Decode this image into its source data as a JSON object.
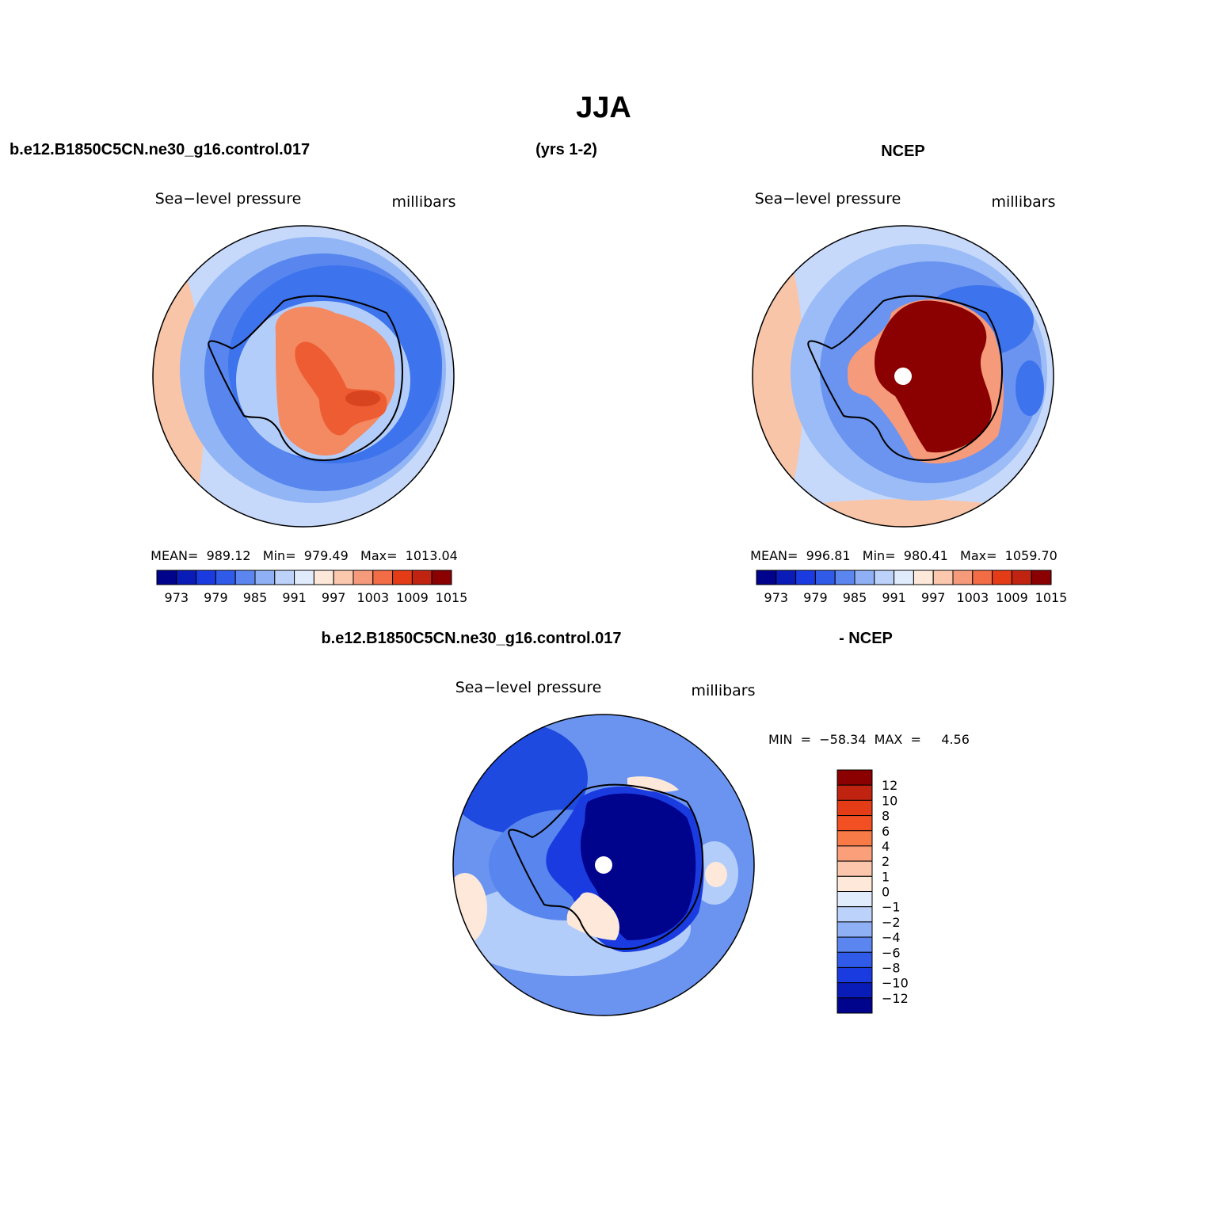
{
  "figure": {
    "season": "JJA",
    "case_name": "b.e12.B1850C5CN.ne30_g16.control.017",
    "years": "(yrs 1-2)",
    "obs_name": "NCEP",
    "diff_case_name": "b.e12.B1850C5CN.ne30_g16.control.017",
    "diff_suffix": "- NCEP"
  },
  "chart_data": [
    {
      "type": "heatmap",
      "projection": "south-polar-stereographic",
      "title_left": "Sea−level pressure",
      "title_right": "millibars",
      "stats": {
        "mean": "989.12",
        "min": "979.49",
        "max": "1013.04"
      },
      "stats_text": "MEAN=  989.12   Min=  979.49   Max=  1013.04",
      "fields": {
        "outer": "#c7d9fb",
        "ring_warm": "#f8c5a8",
        "ocean_a": "#91b5f5",
        "ocean_b": "#5886ee",
        "ocean_c": "#3d73ec",
        "ice_ring": "#b3cdfa",
        "land": "#f48a62",
        "land_core": "#ee5c33",
        "land_peak": "#d7441f"
      },
      "colorbar": {
        "orientation": "horizontal",
        "levels": [
          "973",
          "979",
          "985",
          "991",
          "997",
          "1003",
          "1009",
          "1015"
        ],
        "colors": [
          "#00038c",
          "#0a1cb8",
          "#1a3be0",
          "#2f5be8",
          "#5b86ef",
          "#8fb0f5",
          "#bcd2fa",
          "#e0ebfc",
          "#fde8da",
          "#fbc7ad",
          "#f59a7a",
          "#f26c45",
          "#e33c16",
          "#c02410",
          "#8b0000"
        ]
      }
    },
    {
      "type": "heatmap",
      "projection": "south-polar-stereographic",
      "title_left": "Sea−level pressure",
      "title_right": "millibars",
      "stats": {
        "mean": "996.81",
        "min": "980.41",
        "max": "1059.70"
      },
      "stats_text": "MEAN=  996.81   Min=  980.41   Max=  1059.70",
      "fields": {
        "outer": "#c7d9fb",
        "ring_warm": "#f8c5a8",
        "ocean_a": "#9bbcf6",
        "ocean_b": "#6a94f0",
        "ocean_c": "#3d73ec",
        "ice_ring": "#f59a7a",
        "land": "#8b0000",
        "land_core": "#8b0000",
        "land_peak": "#8b0000"
      },
      "colorbar": {
        "orientation": "horizontal",
        "levels": [
          "973",
          "979",
          "985",
          "991",
          "997",
          "1003",
          "1009",
          "1015"
        ],
        "colors": [
          "#00038c",
          "#0a1cb8",
          "#1a3be0",
          "#2f5be8",
          "#5b86ef",
          "#8fb0f5",
          "#bcd2fa",
          "#e0ebfc",
          "#fde8da",
          "#fbc7ad",
          "#f59a7a",
          "#f26c45",
          "#e33c16",
          "#c02410",
          "#8b0000"
        ]
      }
    },
    {
      "type": "heatmap",
      "projection": "south-polar-stereographic",
      "title_left": "Sea−level pressure",
      "title_right": "millibars",
      "stats": {
        "min": "−58.34",
        "max": "4.56"
      },
      "stats_text": "MIN  =  −58.34  MAX  =     4.56",
      "fields": {
        "outer": "#6a94f0",
        "ring_warm": "#fde8da",
        "ocean_a": "#b3cdfa",
        "ocean_b": "#5886ee",
        "ocean_c": "#1f4ae0",
        "ice_ring": "#1a3be0",
        "land": "#00038c",
        "land_core": "#00038c",
        "land_peak": "#00038c"
      },
      "colorbar": {
        "orientation": "vertical",
        "levels": [
          "12",
          "10",
          "8",
          "6",
          "4",
          "2",
          "1",
          "0",
          "−1",
          "−2",
          "−4",
          "−6",
          "−8",
          "−10",
          "−12"
        ],
        "colors": [
          "#8b0000",
          "#c02410",
          "#e33c16",
          "#f24f22",
          "#f87a47",
          "#fa9f7a",
          "#fcc6ad",
          "#fde8da",
          "#e0ebfc",
          "#bcd2fa",
          "#8fb0f5",
          "#5b86ef",
          "#2f5be8",
          "#1a3be0",
          "#0a1cb8",
          "#00038c"
        ]
      }
    }
  ]
}
